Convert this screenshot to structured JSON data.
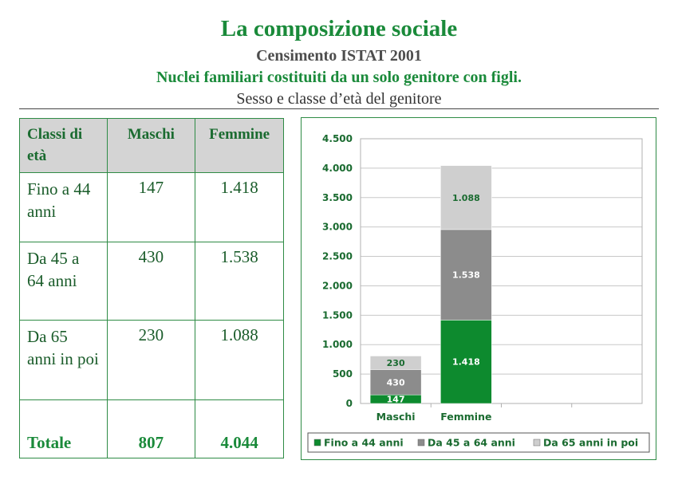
{
  "header": {
    "title": "La composizione sociale",
    "subtitle": "Censimento ISTAT 2001",
    "subtitle2": "Nuclei familiari costituiti da un solo genitore con figli.",
    "subtitle3": "Sesso e classe d’età del genitore"
  },
  "table": {
    "headers": [
      "Classi di età",
      "Maschi",
      "Femmine"
    ],
    "rows": [
      {
        "label": "Fino a 44 anni",
        "maschi": "147",
        "femmine": "1.418"
      },
      {
        "label": "Da 45 a 64 anni",
        "maschi": "430",
        "femmine": "1.538"
      },
      {
        "label": "Da 65 anni in poi",
        "maschi": "230",
        "femmine": "1.088"
      }
    ],
    "total": {
      "label": "Totale",
      "maschi": "807",
      "femmine": "4.044"
    }
  },
  "chart_data": {
    "type": "bar",
    "stacked": true,
    "categories": [
      "Maschi",
      "Femmine"
    ],
    "series": [
      {
        "name": "Fino a 44 anni",
        "values": [
          147,
          1418
        ],
        "labels": [
          "147",
          "1.418"
        ],
        "color": "#0d8a2e"
      },
      {
        "name": "Da 45 a 64 anni",
        "values": [
          430,
          1538
        ],
        "labels": [
          "430",
          "1.538"
        ],
        "color": "#8c8c8c"
      },
      {
        "name": "Da 65 anni in poi",
        "values": [
          230,
          1088
        ],
        "labels": [
          "230",
          "1.088"
        ],
        "color": "#cfcfcf"
      }
    ],
    "ylim": [
      0,
      4500
    ],
    "yticks": [
      0,
      500,
      1000,
      1500,
      2000,
      2500,
      3000,
      3500,
      4000,
      4500
    ],
    "ytick_labels": [
      "0",
      "500",
      "1.000",
      "1.500",
      "2.000",
      "2.500",
      "3.000",
      "3.500",
      "4.000",
      "4.500"
    ],
    "grid": true,
    "legend_position": "bottom",
    "empty_slots": 2
  }
}
